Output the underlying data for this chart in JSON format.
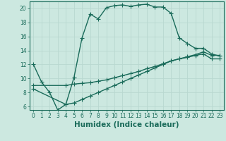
{
  "xlabel": "Humidex (Indice chaleur)",
  "ylabel": "",
  "bg_color": "#cce8e0",
  "line_color": "#1a6b5a",
  "grid_color": "#b8d8d0",
  "xlim": [
    -0.5,
    23.5
  ],
  "ylim": [
    5.5,
    21
  ],
  "xticks": [
    0,
    1,
    2,
    3,
    4,
    5,
    6,
    7,
    8,
    9,
    10,
    11,
    12,
    13,
    14,
    15,
    16,
    17,
    18,
    19,
    20,
    21,
    22,
    23
  ],
  "yticks": [
    6,
    8,
    10,
    12,
    14,
    16,
    18,
    20
  ],
  "line1_x": [
    0,
    1,
    2,
    3,
    4,
    5,
    6,
    7,
    8,
    9,
    10,
    11,
    12,
    13,
    14,
    15,
    16,
    17,
    18,
    19,
    20,
    21,
    22,
    23
  ],
  "line1_y": [
    12.0,
    9.5,
    8.0,
    5.5,
    6.3,
    10.1,
    15.8,
    19.2,
    18.5,
    20.1,
    20.4,
    20.5,
    20.3,
    20.5,
    20.6,
    20.2,
    20.2,
    19.3,
    15.8,
    15.0,
    14.3,
    14.3,
    13.5,
    13.2
  ],
  "line2_x": [
    0,
    4,
    5,
    6,
    7,
    8,
    9,
    10,
    11,
    12,
    13,
    14,
    15,
    16,
    17,
    18,
    19,
    20,
    21,
    22,
    23
  ],
  "line2_y": [
    9.0,
    9.0,
    9.2,
    9.3,
    9.4,
    9.6,
    9.8,
    10.1,
    10.4,
    10.7,
    11.0,
    11.4,
    11.7,
    12.1,
    12.5,
    12.8,
    13.1,
    13.4,
    13.8,
    13.3,
    13.3
  ],
  "line3_x": [
    0,
    4,
    5,
    6,
    7,
    8,
    9,
    10,
    11,
    12,
    13,
    14,
    15,
    16,
    17,
    18,
    19,
    20,
    21,
    22,
    23
  ],
  "line3_y": [
    8.5,
    6.3,
    6.5,
    7.0,
    7.5,
    8.0,
    8.5,
    9.0,
    9.5,
    10.0,
    10.5,
    11.0,
    11.5,
    12.0,
    12.5,
    12.8,
    13.0,
    13.3,
    13.5,
    12.8,
    12.8
  ],
  "marker": "+",
  "markersize": 4,
  "linewidth": 1.0,
  "tick_fontsize": 5.5,
  "label_fontsize": 7.5
}
